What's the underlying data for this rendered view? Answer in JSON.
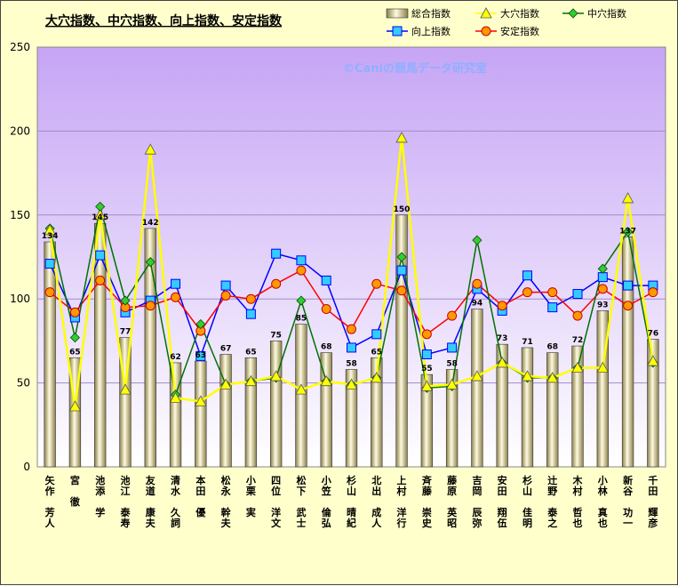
{
  "chart_data": {
    "type": "bar",
    "title": "大穴指数、中穴指数、向上指数、安定指数",
    "watermark": "©Caniの競馬データ研究室",
    "ylim": [
      0,
      250
    ],
    "yticks": [
      0,
      50,
      100,
      150,
      200,
      250
    ],
    "grid": true,
    "legend_position": "top-right",
    "categories": [
      "矢作 芳人",
      "宮 徹",
      "池添 学",
      "池江 泰寿",
      "友道 康夫",
      "清水 久詞",
      "本田 優",
      "松永 幹夫",
      "小栗 実",
      "四位 洋文",
      "松下 武士",
      "小笠 倫弘",
      "杉山 晴紀",
      "北出 成人",
      "上村 洋行",
      "斉藤 崇史",
      "藤原 英昭",
      "吉岡 辰弥",
      "安田 翔伍",
      "杉山 佳明",
      "辻野 泰之",
      "木村 哲也",
      "小林 真也",
      "新谷 功一",
      "千田 輝彦"
    ],
    "series": [
      {
        "name": "総合指数",
        "type": "bar",
        "color": "#e8e0a0",
        "values": [
          134,
          65,
          145,
          77,
          142,
          62,
          63,
          67,
          65,
          75,
          85,
          68,
          58,
          65,
          150,
          55,
          58,
          94,
          73,
          71,
          68,
          72,
          93,
          137,
          76
        ]
      },
      {
        "name": "大穴指数",
        "type": "line",
        "color": "#ffff00",
        "marker": "triangle",
        "values": [
          141,
          36,
          150,
          46,
          189,
          41,
          39,
          49,
          51,
          54,
          46,
          51,
          49,
          53,
          196,
          48,
          49,
          54,
          62,
          54,
          53,
          59,
          59,
          160,
          63
        ]
      },
      {
        "name": "中穴指数",
        "type": "line",
        "color": "#007000",
        "marker": "diamond",
        "values": [
          142,
          77,
          155,
          99,
          122,
          43,
          85,
          49,
          51,
          53,
          99,
          51,
          49,
          53,
          125,
          47,
          48,
          135,
          62,
          53,
          53,
          59,
          118,
          140,
          62
        ]
      },
      {
        "name": "向上指数",
        "type": "line",
        "color": "#0000ff",
        "marker": "square",
        "values": [
          121,
          89,
          126,
          92,
          99,
          109,
          66,
          108,
          91,
          127,
          123,
          111,
          71,
          79,
          117,
          67,
          71,
          106,
          93,
          114,
          95,
          103,
          113,
          108,
          108
        ]
      },
      {
        "name": "安定指数",
        "type": "line",
        "color": "#ff0000",
        "marker": "circle",
        "values": [
          104,
          92,
          111,
          95,
          96,
          101,
          81,
          102,
          100,
          109,
          117,
          94,
          82,
          109,
          105,
          79,
          90,
          109,
          96,
          104,
          104,
          90,
          106,
          96,
          104
        ]
      }
    ]
  }
}
